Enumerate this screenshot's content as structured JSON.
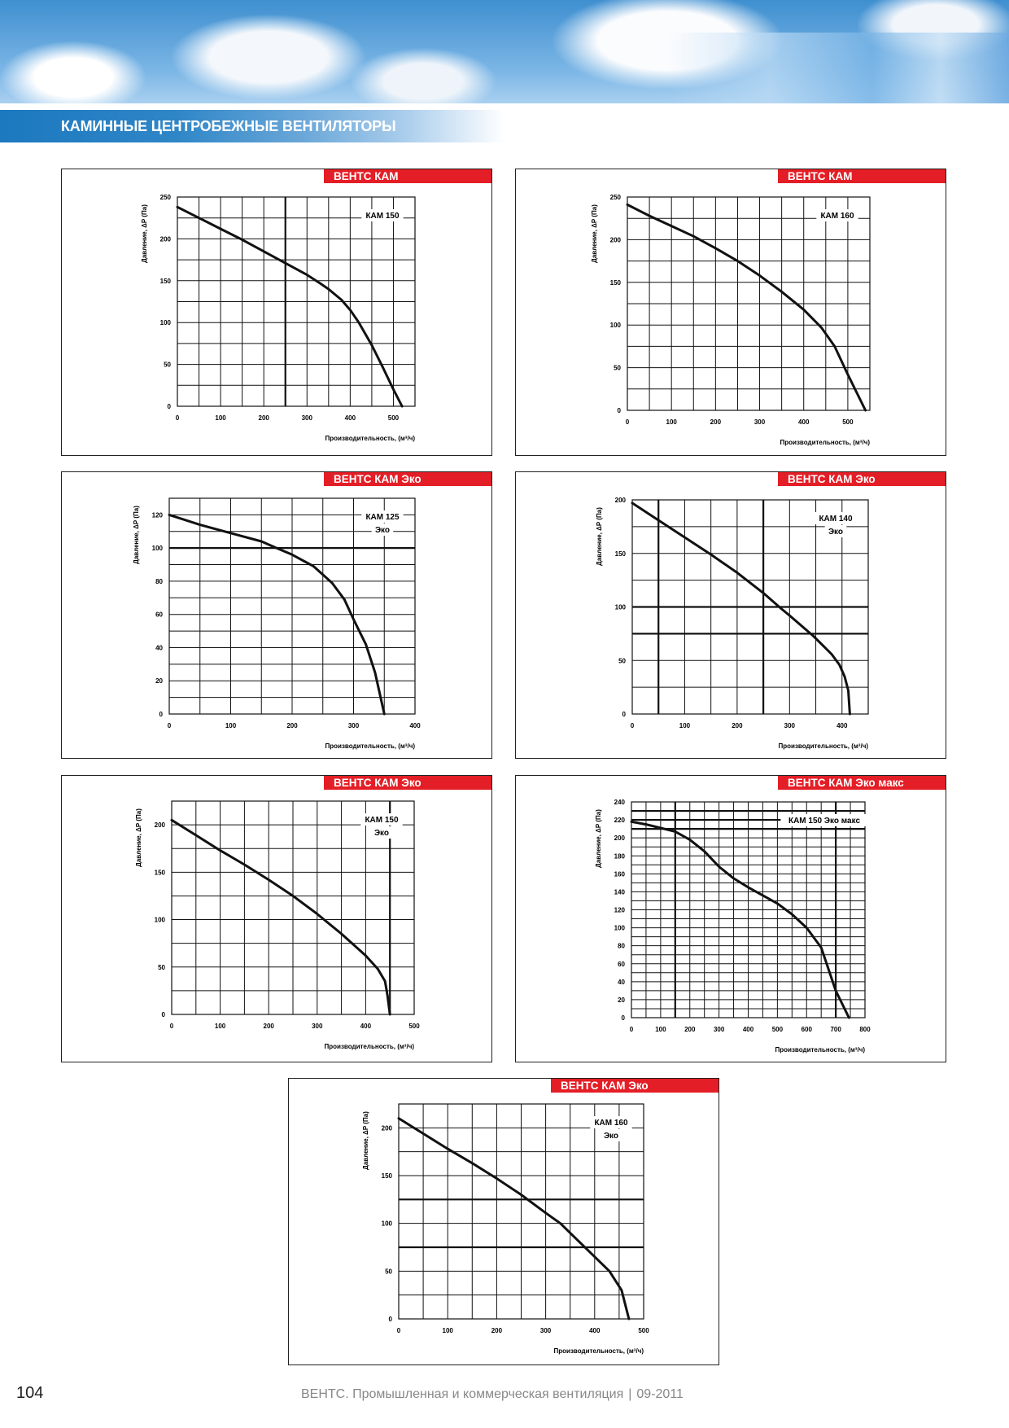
{
  "header": {
    "title": "КАМИННЫЕ ЦЕНТРОБЕЖНЫЕ ВЕНТИЛЯТОРЫ"
  },
  "footer": {
    "page_number": "104",
    "publication": "ВЕНТС. Промышленная и коммерческая вентиляция",
    "date": "09-2011"
  },
  "colors": {
    "badge": "#e41e26",
    "title_bar": "#1c78bf",
    "curve": "#111111"
  },
  "chart_data": [
    {
      "type": "line",
      "badge": "ВЕНТС КАМ",
      "legend": [
        "КАМ 150"
      ],
      "xlabel": "Производительность, (м³/ч)",
      "ylabel": "Давление, ΔP (Па)",
      "xlim": [
        0,
        550
      ],
      "ylim": [
        0,
        250
      ],
      "x_grid_step": 50,
      "y_grid_step": 25,
      "x_ticks": [
        0,
        100,
        200,
        300,
        400,
        500
      ],
      "y_ticks": [
        0,
        50,
        100,
        150,
        200,
        250
      ],
      "emphasized_x": [
        250
      ],
      "emphasized_y": [],
      "grid": true,
      "points": [
        [
          0,
          238
        ],
        [
          50,
          225
        ],
        [
          100,
          212
        ],
        [
          150,
          199
        ],
        [
          200,
          185
        ],
        [
          250,
          171
        ],
        [
          300,
          157
        ],
        [
          330,
          147
        ],
        [
          350,
          140
        ],
        [
          380,
          127
        ],
        [
          400,
          115
        ],
        [
          420,
          100
        ],
        [
          450,
          73
        ],
        [
          475,
          47
        ],
        [
          500,
          20
        ],
        [
          520,
          0
        ]
      ]
    },
    {
      "type": "line",
      "badge": "ВЕНТС КАМ",
      "legend": [
        "КАМ 160"
      ],
      "xlabel": "Производительность, (м³/ч)",
      "ylabel": "Давление, ΔP (Па)",
      "xlim": [
        0,
        550
      ],
      "ylim": [
        0,
        250
      ],
      "x_grid_step": 50,
      "y_grid_step": 25,
      "x_ticks": [
        0,
        100,
        200,
        300,
        400,
        500
      ],
      "y_ticks": [
        0,
        50,
        100,
        150,
        200,
        250
      ],
      "emphasized_x": [],
      "emphasized_y": [],
      "grid": true,
      "points": [
        [
          0,
          241
        ],
        [
          50,
          228
        ],
        [
          100,
          216
        ],
        [
          150,
          204
        ],
        [
          200,
          190
        ],
        [
          250,
          175
        ],
        [
          300,
          158
        ],
        [
          350,
          139
        ],
        [
          400,
          118
        ],
        [
          440,
          97
        ],
        [
          470,
          75
        ],
        [
          500,
          42
        ],
        [
          540,
          0
        ]
      ]
    },
    {
      "type": "line",
      "badge": "ВЕНТС КАМ Эко",
      "legend": [
        "КАМ 125",
        "Эко"
      ],
      "xlabel": "Производительность, (м³/ч)",
      "ylabel": "Давление, ΔP (Па)",
      "xlim": [
        0,
        400
      ],
      "ylim": [
        0,
        130
      ],
      "x_grid_step": 50,
      "y_grid_step": 10,
      "x_ticks": [
        0,
        100,
        200,
        300,
        400
      ],
      "y_ticks": [
        0,
        20,
        40,
        60,
        80,
        100,
        120
      ],
      "emphasized_x": [],
      "emphasized_y": [
        100
      ],
      "grid": true,
      "points": [
        [
          0,
          120
        ],
        [
          50,
          114
        ],
        [
          100,
          109
        ],
        [
          150,
          104
        ],
        [
          175,
          100
        ],
        [
          200,
          96
        ],
        [
          235,
          89
        ],
        [
          265,
          79
        ],
        [
          285,
          69
        ],
        [
          300,
          57
        ],
        [
          320,
          42
        ],
        [
          335,
          25
        ],
        [
          350,
          0
        ]
      ]
    },
    {
      "type": "line",
      "badge": "ВЕНТС КАМ Эко",
      "legend": [
        "КАМ 140",
        "Эко"
      ],
      "xlabel": "Производительность, (м³/ч)",
      "ylabel": "Давление, ΔP (Па)",
      "xlim": [
        0,
        450
      ],
      "ylim": [
        0,
        200
      ],
      "x_grid_step": 50,
      "y_grid_step": 25,
      "x_ticks": [
        0,
        100,
        200,
        300,
        400
      ],
      "y_ticks": [
        0,
        50,
        100,
        150,
        200
      ],
      "emphasized_x": [
        50,
        250
      ],
      "emphasized_y": [
        75,
        100
      ],
      "grid": true,
      "points": [
        [
          0,
          197
        ],
        [
          50,
          181
        ],
        [
          100,
          165
        ],
        [
          150,
          149
        ],
        [
          200,
          132
        ],
        [
          250,
          113
        ],
        [
          285,
          98
        ],
        [
          300,
          92
        ],
        [
          345,
          73
        ],
        [
          380,
          56
        ],
        [
          395,
          46
        ],
        [
          405,
          35
        ],
        [
          412,
          22
        ],
        [
          415,
          0
        ]
      ]
    },
    {
      "type": "line",
      "badge": "ВЕНТС КАМ Эко",
      "legend": [
        "КАМ 150",
        "Эко"
      ],
      "xlabel": "Производительность, (м³/ч)",
      "ylabel": "Давление, ΔP (Па)",
      "xlim": [
        0,
        500
      ],
      "ylim": [
        0,
        225
      ],
      "x_grid_step": 50,
      "y_grid_step": 25,
      "x_ticks": [
        0,
        100,
        200,
        300,
        400,
        500
      ],
      "y_ticks": [
        0,
        50,
        100,
        150,
        200
      ],
      "emphasized_x": [
        450
      ],
      "emphasized_y": [],
      "grid": true,
      "points": [
        [
          0,
          205
        ],
        [
          50,
          189
        ],
        [
          100,
          173
        ],
        [
          150,
          158
        ],
        [
          200,
          142
        ],
        [
          250,
          125
        ],
        [
          300,
          106
        ],
        [
          350,
          85
        ],
        [
          400,
          62
        ],
        [
          425,
          48
        ],
        [
          440,
          35
        ],
        [
          445,
          20
        ],
        [
          450,
          0
        ]
      ]
    },
    {
      "type": "line",
      "badge": "ВЕНТС КАМ Эко макс",
      "legend": [
        "КАМ 150 Эко макс"
      ],
      "xlabel": "Производительность, (м³/ч)",
      "ylabel": "Давление, ΔP (Па)",
      "xlim": [
        0,
        800
      ],
      "ylim": [
        0,
        240
      ],
      "x_grid_step": 50,
      "y_grid_step": 10,
      "x_ticks": [
        0,
        100,
        200,
        300,
        400,
        500,
        600,
        700,
        800
      ],
      "y_ticks": [
        0,
        20,
        40,
        60,
        80,
        100,
        120,
        140,
        160,
        180,
        200,
        220,
        240
      ],
      "emphasized_x": [
        150,
        700
      ],
      "emphasized_y": [
        210,
        220,
        230
      ],
      "grid": true,
      "points": [
        [
          0,
          218
        ],
        [
          50,
          215
        ],
        [
          100,
          211
        ],
        [
          150,
          207
        ],
        [
          200,
          198
        ],
        [
          250,
          185
        ],
        [
          300,
          168
        ],
        [
          350,
          155
        ],
        [
          400,
          145
        ],
        [
          450,
          136
        ],
        [
          500,
          127
        ],
        [
          550,
          115
        ],
        [
          600,
          100
        ],
        [
          650,
          78
        ],
        [
          700,
          30
        ],
        [
          745,
          0
        ]
      ]
    },
    {
      "type": "line",
      "badge": "ВЕНТС КАМ Эко",
      "legend": [
        "КАМ 160",
        "Эко"
      ],
      "xlabel": "Производительность, (м³/ч)",
      "ylabel": "Давление, ΔP (Па)",
      "xlim": [
        0,
        500
      ],
      "ylim": [
        0,
        225
      ],
      "x_grid_step": 50,
      "y_grid_step": 25,
      "x_ticks": [
        0,
        100,
        200,
        300,
        400,
        500
      ],
      "y_ticks": [
        0,
        50,
        100,
        150,
        200
      ],
      "emphasized_x": [],
      "emphasized_y": [
        75,
        125
      ],
      "grid": true,
      "points": [
        [
          0,
          210
        ],
        [
          50,
          194
        ],
        [
          100,
          178
        ],
        [
          150,
          163
        ],
        [
          200,
          147
        ],
        [
          250,
          130
        ],
        [
          300,
          111
        ],
        [
          330,
          100
        ],
        [
          350,
          90
        ],
        [
          400,
          65
        ],
        [
          430,
          50
        ],
        [
          455,
          30
        ],
        [
          470,
          0
        ]
      ]
    }
  ]
}
